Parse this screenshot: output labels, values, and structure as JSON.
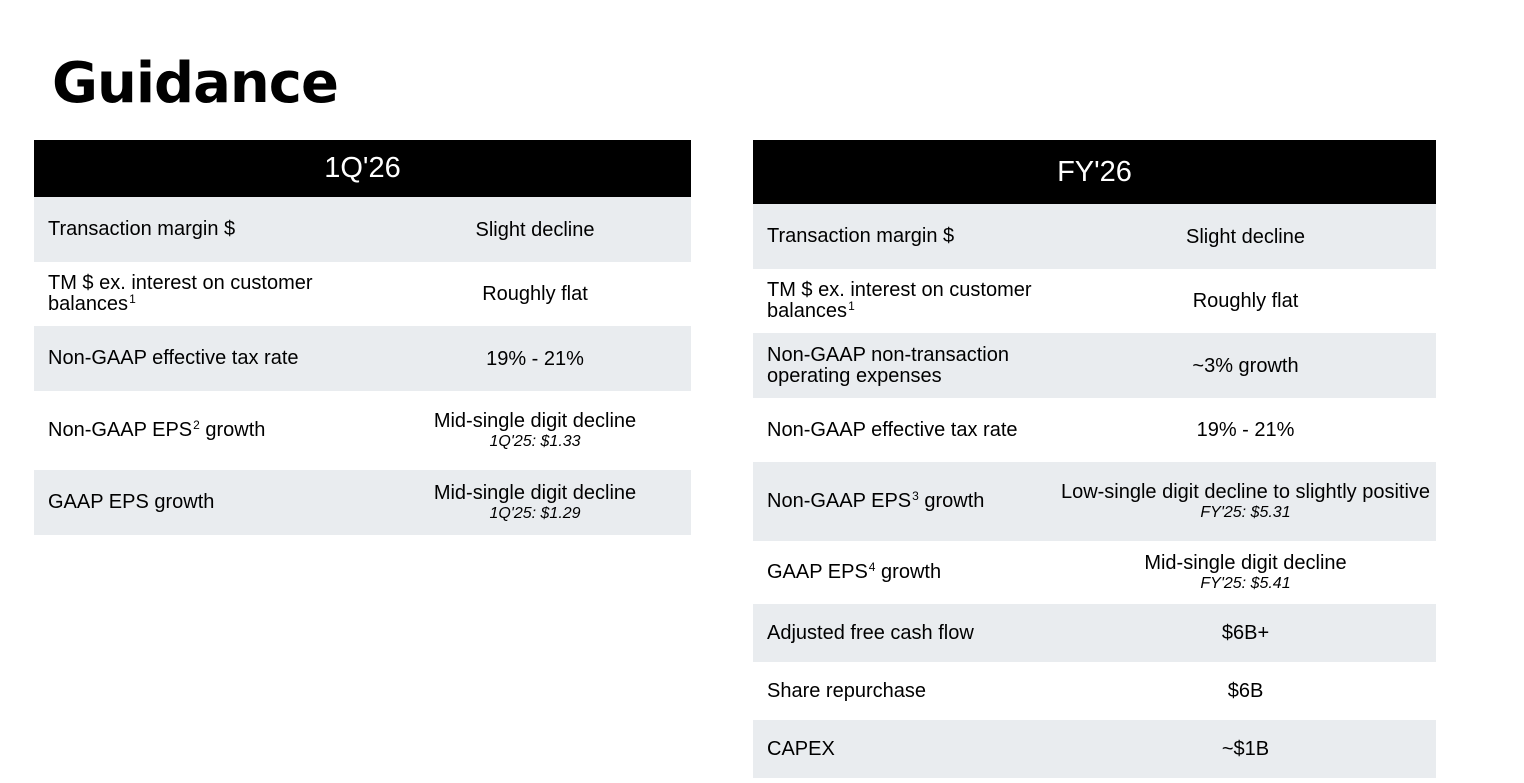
{
  "title": "Guidance",
  "q_panel": {
    "header": "1Q'26",
    "rows": [
      {
        "label": "Transaction margin $",
        "value": "Slight decline"
      },
      {
        "label": "TM $ ex. interest on customer balances",
        "sup": "1",
        "value": "Roughly flat"
      },
      {
        "label": "Non-GAAP effective tax rate",
        "value": "19% - 21%"
      },
      {
        "label": "Non-GAAP EPS",
        "sup": "2",
        "label_suffix": "growth",
        "value": "Mid-single digit decline",
        "note": "1Q'25: $1.33"
      },
      {
        "label": "GAAP EPS growth",
        "value": "Mid-single digit decline",
        "note": "1Q'25: $1.29"
      }
    ]
  },
  "fy_panel": {
    "header": "FY'26",
    "rows": [
      {
        "label": "Transaction margin $",
        "value": "Slight decline"
      },
      {
        "label": "TM $ ex. interest on customer balances",
        "sup": "1",
        "value": "Roughly flat"
      },
      {
        "label": "Non-GAAP non-transaction operating expenses",
        "value": "~3% growth"
      },
      {
        "label": "Non-GAAP effective tax rate",
        "value": "19% - 21%"
      },
      {
        "label": "Non-GAAP EPS",
        "sup": "3",
        "label_suffix": "growth",
        "value": "Low-single digit decline to slightly positive",
        "note": "FY'25: $5.31"
      },
      {
        "label": "GAAP EPS",
        "sup": "4",
        "label_suffix": "growth",
        "value": "Mid-single digit decline",
        "note": "FY'25: $5.41"
      },
      {
        "label": "Adjusted free cash flow",
        "value": "$6B+"
      },
      {
        "label": "Share repurchase",
        "value": "$6B"
      },
      {
        "label": "CAPEX",
        "value": "~$1B"
      }
    ]
  }
}
